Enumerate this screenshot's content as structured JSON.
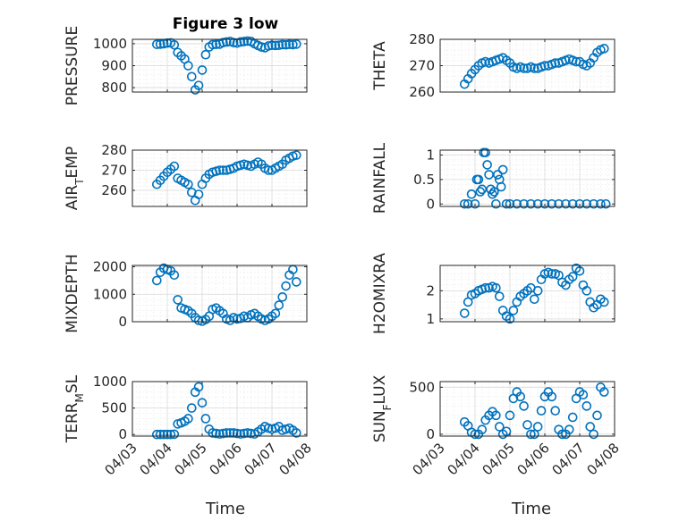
{
  "figure": {
    "title": "Figure 3 low",
    "xlabel": "Time"
  },
  "x_ticks": [
    "04/03",
    "04/04",
    "04/05",
    "04/06",
    "04/07",
    "04/08"
  ],
  "x_range": [
    0,
    5
  ],
  "marker_color": "#0072BD",
  "chart_data": [
    {
      "type": "scatter",
      "ylabel": "PRESSURE",
      "ylim": [
        780,
        1020
      ],
      "yticks": [
        800,
        900,
        1000
      ],
      "grid": true,
      "x": [
        0.7,
        0.8,
        0.9,
        1.0,
        1.1,
        1.2,
        1.3,
        1.4,
        1.5,
        1.6,
        1.7,
        1.8,
        1.9,
        2.0,
        2.1,
        2.2,
        2.3,
        2.4,
        2.5,
        2.6,
        2.7,
        2.8,
        2.9,
        3.0,
        3.1,
        3.2,
        3.3,
        3.4,
        3.5,
        3.6,
        3.7,
        3.8,
        3.9,
        4.0,
        4.1,
        4.2,
        4.3,
        4.4,
        4.5,
        4.6,
        4.7
      ],
      "y": [
        997,
        998,
        1000,
        1003,
        1004,
        995,
        960,
        945,
        930,
        900,
        850,
        790,
        810,
        880,
        950,
        985,
        996,
        997,
        998,
        1005,
        1008,
        1010,
        1005,
        1003,
        1008,
        1010,
        1012,
        1010,
        1000,
        992,
        985,
        982,
        990,
        993,
        992,
        993,
        996,
        995,
        997,
        996,
        998
      ]
    },
    {
      "type": "scatter",
      "ylabel": "THETA",
      "ylim": [
        260,
        280
      ],
      "yticks": [
        260,
        270,
        280
      ],
      "grid": true,
      "x": [
        0.7,
        0.8,
        0.9,
        1.0,
        1.1,
        1.2,
        1.3,
        1.4,
        1.5,
        1.6,
        1.7,
        1.8,
        1.9,
        2.0,
        2.1,
        2.2,
        2.3,
        2.4,
        2.5,
        2.6,
        2.7,
        2.8,
        2.9,
        3.0,
        3.1,
        3.2,
        3.3,
        3.4,
        3.5,
        3.6,
        3.7,
        3.8,
        3.9,
        4.0,
        4.1,
        4.2,
        4.3,
        4.4,
        4.5,
        4.6,
        4.7
      ],
      "y": [
        263,
        265,
        267,
        268.5,
        270,
        271,
        271.5,
        271,
        271.5,
        272,
        272.5,
        273,
        272,
        271,
        269.5,
        269,
        269.5,
        269,
        269,
        269.5,
        269,
        269,
        269.5,
        270,
        270,
        270.5,
        271,
        271,
        271.5,
        272,
        272.5,
        272,
        271.5,
        271.5,
        270.5,
        270,
        271,
        273,
        275,
        276,
        276.5
      ]
    },
    {
      "type": "scatter",
      "ylabel": "AIR_TEMP",
      "ylim": [
        252,
        280
      ],
      "yticks": [
        260,
        270,
        280
      ],
      "grid": true,
      "x": [
        0.7,
        0.8,
        0.9,
        1.0,
        1.1,
        1.2,
        1.3,
        1.4,
        1.5,
        1.6,
        1.7,
        1.8,
        1.9,
        2.0,
        2.1,
        2.2,
        2.3,
        2.4,
        2.5,
        2.6,
        2.7,
        2.8,
        2.9,
        3.0,
        3.1,
        3.2,
        3.3,
        3.4,
        3.5,
        3.6,
        3.7,
        3.8,
        3.9,
        4.0,
        4.1,
        4.2,
        4.3,
        4.4,
        4.5,
        4.6,
        4.7
      ],
      "y": [
        263,
        265,
        267,
        269,
        270.5,
        272,
        266,
        265,
        264,
        263,
        259,
        255,
        258,
        263,
        266,
        268,
        269,
        269.5,
        270,
        270,
        270,
        270.5,
        271,
        272,
        272.5,
        273,
        272.5,
        272,
        273,
        274,
        273,
        271,
        270,
        270,
        271,
        272,
        273,
        275,
        276,
        277,
        277.5
      ]
    },
    {
      "type": "scatter",
      "ylabel": "RAINFALL",
      "ylim": [
        -0.05,
        1.1
      ],
      "yticks": [
        0,
        0.5,
        1
      ],
      "ytick_labels": [
        "0",
        "0.5",
        "1"
      ],
      "grid": true,
      "x": [
        0.7,
        0.8,
        0.9,
        1.0,
        1.05,
        1.1,
        1.15,
        1.2,
        1.25,
        1.3,
        1.35,
        1.4,
        1.45,
        1.5,
        1.55,
        1.6,
        1.65,
        1.7,
        1.75,
        1.8,
        1.9,
        2.0,
        2.2,
        2.4,
        2.6,
        2.8,
        3.0,
        3.2,
        3.4,
        3.6,
        3.8,
        4.0,
        4.2,
        4.4,
        4.6,
        4.75
      ],
      "y": [
        0,
        0,
        0.2,
        0,
        0.5,
        0.5,
        0.25,
        0.3,
        1.05,
        1.05,
        0.8,
        0.6,
        0.3,
        0.2,
        0.25,
        0,
        0.6,
        0.5,
        0.35,
        0.7,
        0,
        0,
        0,
        0,
        0,
        0,
        0,
        0,
        0,
        0,
        0,
        0,
        0,
        0,
        0,
        0
      ]
    },
    {
      "type": "scatter",
      "ylabel": "MIXDEPTH",
      "ylim": [
        0,
        2050
      ],
      "yticks": [
        0,
        1000,
        2000
      ],
      "grid": true,
      "x": [
        0.7,
        0.8,
        0.9,
        1.0,
        1.1,
        1.2,
        1.3,
        1.4,
        1.5,
        1.6,
        1.7,
        1.8,
        1.9,
        2.0,
        2.1,
        2.2,
        2.3,
        2.4,
        2.5,
        2.6,
        2.7,
        2.8,
        2.9,
        3.0,
        3.1,
        3.2,
        3.3,
        3.4,
        3.5,
        3.6,
        3.7,
        3.8,
        3.9,
        4.0,
        4.1,
        4.2,
        4.3,
        4.4,
        4.5,
        4.6,
        4.7
      ],
      "y": [
        1500,
        1800,
        1950,
        1900,
        1850,
        1700,
        800,
        500,
        450,
        400,
        300,
        150,
        50,
        20,
        80,
        200,
        450,
        500,
        400,
        300,
        100,
        50,
        150,
        100,
        120,
        200,
        150,
        250,
        300,
        200,
        100,
        50,
        100,
        200,
        300,
        600,
        900,
        1300,
        1700,
        1900,
        1450
      ]
    },
    {
      "type": "scatter",
      "ylabel": "H2OMIXRA",
      "ylim": [
        0.9,
        2.9
      ],
      "yticks": [
        1,
        2
      ],
      "grid": true,
      "x": [
        0.7,
        0.8,
        0.9,
        1.0,
        1.1,
        1.2,
        1.3,
        1.4,
        1.5,
        1.6,
        1.7,
        1.8,
        1.9,
        2.0,
        2.1,
        2.2,
        2.3,
        2.4,
        2.5,
        2.6,
        2.7,
        2.8,
        2.9,
        3.0,
        3.1,
        3.2,
        3.3,
        3.4,
        3.5,
        3.6,
        3.7,
        3.8,
        3.9,
        4.0,
        4.1,
        4.2,
        4.3,
        4.4,
        4.5,
        4.6,
        4.7
      ],
      "y": [
        1.2,
        1.6,
        1.85,
        1.9,
        2.0,
        2.05,
        2.1,
        2.1,
        2.15,
        2.1,
        1.8,
        1.3,
        1.1,
        1.0,
        1.3,
        1.6,
        1.8,
        1.9,
        2.0,
        2.1,
        1.7,
        2.0,
        2.4,
        2.6,
        2.65,
        2.6,
        2.6,
        2.55,
        2.3,
        2.2,
        2.4,
        2.5,
        2.8,
        2.7,
        2.2,
        2.0,
        1.6,
        1.4,
        1.5,
        1.7,
        1.6
      ]
    },
    {
      "type": "scatter",
      "ylabel": "TERR_MSL",
      "ylim": [
        -30,
        1000
      ],
      "yticks": [
        0,
        500,
        1000
      ],
      "grid": true,
      "x": [
        0.7,
        0.8,
        0.9,
        1.0,
        1.1,
        1.2,
        1.3,
        1.4,
        1.5,
        1.6,
        1.7,
        1.8,
        1.9,
        2.0,
        2.1,
        2.2,
        2.3,
        2.4,
        2.5,
        2.6,
        2.7,
        2.8,
        2.9,
        3.0,
        3.1,
        3.2,
        3.3,
        3.4,
        3.5,
        3.6,
        3.7,
        3.8,
        3.9,
        4.0,
        4.1,
        4.2,
        4.3,
        4.4,
        4.5,
        4.6,
        4.7
      ],
      "y": [
        0,
        0,
        0,
        0,
        0,
        5,
        200,
        220,
        250,
        300,
        500,
        800,
        900,
        600,
        300,
        100,
        30,
        20,
        10,
        20,
        30,
        30,
        30,
        20,
        10,
        20,
        30,
        20,
        10,
        50,
        100,
        150,
        120,
        100,
        120,
        150,
        80,
        100,
        120,
        80,
        30
      ]
    },
    {
      "type": "scatter",
      "ylabel": "SUN_FLUX",
      "ylim": [
        -20,
        560
      ],
      "yticks": [
        0,
        500
      ],
      "grid": true,
      "x": [
        0.7,
        0.8,
        0.9,
        1.0,
        1.1,
        1.2,
        1.3,
        1.4,
        1.5,
        1.6,
        1.7,
        1.8,
        1.9,
        2.0,
        2.1,
        2.2,
        2.3,
        2.4,
        2.5,
        2.6,
        2.7,
        2.8,
        2.9,
        3.0,
        3.1,
        3.2,
        3.3,
        3.4,
        3.5,
        3.6,
        3.7,
        3.8,
        3.9,
        4.0,
        4.1,
        4.2,
        4.3,
        4.4,
        4.5,
        4.6,
        4.7
      ],
      "y": [
        130,
        90,
        20,
        0,
        0,
        50,
        150,
        200,
        240,
        200,
        80,
        0,
        30,
        200,
        380,
        450,
        400,
        300,
        100,
        0,
        0,
        80,
        250,
        400,
        450,
        400,
        250,
        50,
        0,
        0,
        50,
        180,
        380,
        450,
        420,
        300,
        80,
        0,
        200,
        500,
        450
      ]
    }
  ]
}
